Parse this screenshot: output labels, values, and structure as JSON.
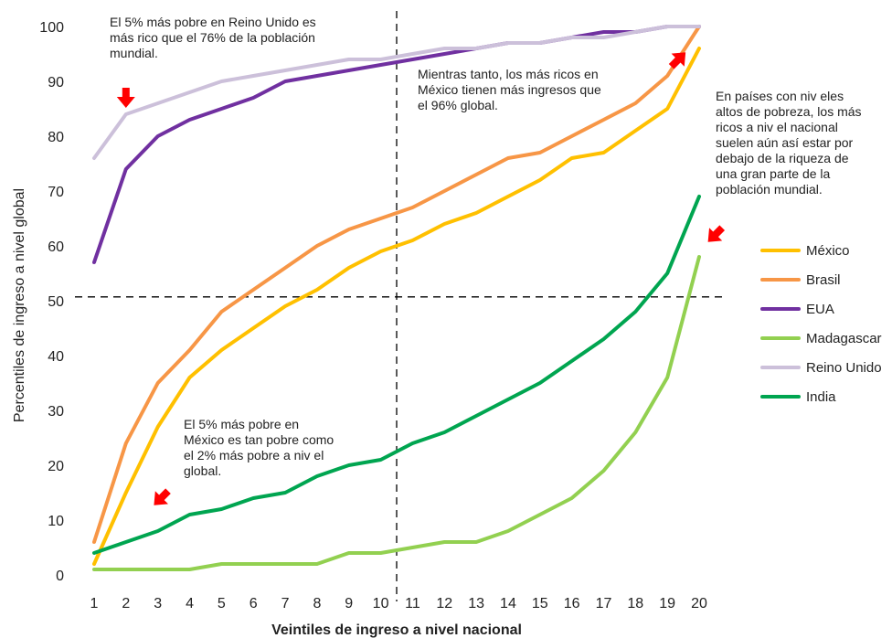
{
  "chart_data": {
    "type": "line",
    "xlabel": "Veintiles de ingreso a nivel nacional",
    "ylabel": "Percentiles de ingreso a nivel global",
    "x": [
      1,
      2,
      3,
      4,
      5,
      6,
      7,
      8,
      9,
      10,
      11,
      12,
      13,
      14,
      15,
      16,
      17,
      18,
      19,
      20
    ],
    "ylim": [
      0,
      100
    ],
    "yticks": [
      0,
      10,
      20,
      30,
      40,
      50,
      60,
      70,
      80,
      90,
      100
    ],
    "grid": false,
    "legend_position": "right",
    "series": [
      {
        "name": "México",
        "color": "#FFC000",
        "values": [
          2,
          15,
          27,
          36,
          41,
          45,
          49,
          52,
          56,
          59,
          61,
          64,
          66,
          69,
          72,
          76,
          77,
          81,
          85,
          96
        ]
      },
      {
        "name": "Brasil",
        "color": "#F79646",
        "values": [
          6,
          24,
          35,
          41,
          48,
          52,
          56,
          60,
          63,
          65,
          67,
          70,
          73,
          76,
          77,
          80,
          83,
          86,
          91,
          100
        ]
      },
      {
        "name": "EUA",
        "color": "#7030A0",
        "values": [
          57,
          74,
          80,
          83,
          85,
          87,
          90,
          91,
          92,
          93,
          94,
          95,
          96,
          97,
          97,
          98,
          99,
          99,
          100,
          100
        ]
      },
      {
        "name": "Madagascar",
        "color": "#92D050",
        "values": [
          1,
          1,
          1,
          1,
          2,
          2,
          2,
          2,
          4,
          4,
          5,
          6,
          6,
          8,
          11,
          14,
          19,
          26,
          36,
          58
        ]
      },
      {
        "name": "Reino Unido",
        "color": "#CCC0DA",
        "values": [
          76,
          84,
          86,
          88,
          90,
          91,
          92,
          93,
          94,
          94,
          95,
          96,
          96,
          97,
          97,
          98,
          98,
          99,
          100,
          100
        ]
      },
      {
        "name": "India",
        "color": "#00A550",
        "values": [
          4,
          6,
          8,
          11,
          12,
          14,
          15,
          18,
          20,
          21,
          24,
          26,
          29,
          32,
          35,
          39,
          43,
          48,
          55,
          69
        ]
      }
    ],
    "reference_lines": {
      "vertical_x": 10.5,
      "horizontal_y": 50.7
    },
    "annotations": [
      {
        "id": "uk",
        "text": "El 5% más pobre en Reino Unido es\nmás rico que el 76% de la población\nmundial.",
        "arrow_x": 2,
        "arrow_y": 87,
        "arrow_dir": "down"
      },
      {
        "id": "mx_rich",
        "text": "Mientras tanto, los más ricos en\nMéxico tienen más ingresos que\nel 96% global.",
        "arrow_x": 19.35,
        "arrow_y": 94,
        "arrow_dir": "up-right"
      },
      {
        "id": "poverty",
        "text": "En países con niv eles\naltos de pobreza, los más\nricos a niv el nacional\nsuelen aún así estar por\ndebajo de la riqueza  de\nuna gran parte de la\npoblación mundial.",
        "arrow_x": 20.5,
        "arrow_y": 62,
        "arrow_dir": "down-left"
      },
      {
        "id": "mx_poor",
        "text": "El 5% más pobre  en\nMéxico es tan pobre  como\nel 2% más pobre  a niv el\nglobal.",
        "arrow_x": 3.1,
        "arrow_y": 14,
        "arrow_dir": "down-left"
      }
    ],
    "arrow_color": "#FF0000"
  }
}
